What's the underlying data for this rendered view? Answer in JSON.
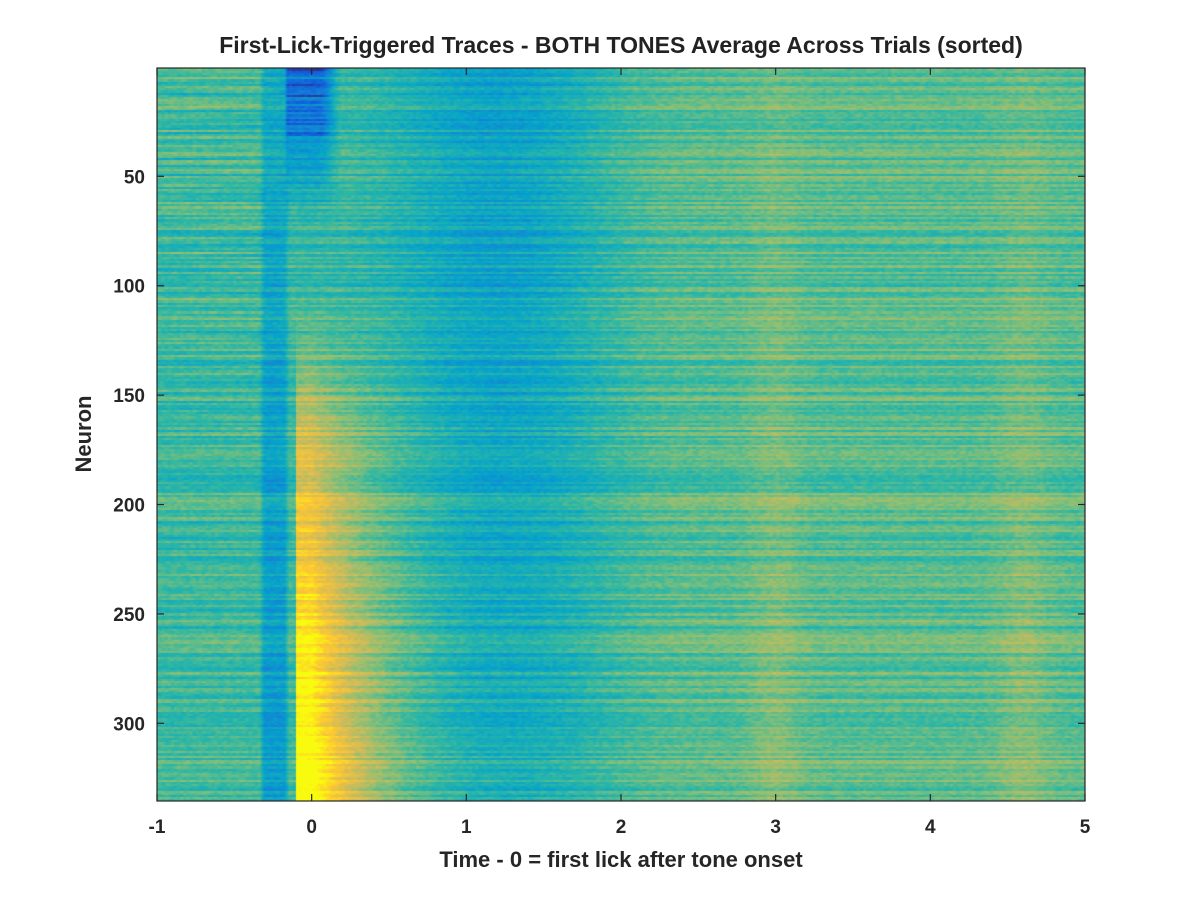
{
  "chart_data": {
    "type": "heatmap",
    "title": "First-Lick-Triggered Traces - BOTH TONES Average Across Trials (sorted)",
    "xlabel": "Time - 0 = first lick after tone onset",
    "ylabel": "Neuron",
    "xlim": [
      -1,
      5
    ],
    "ylim": [
      1,
      335
    ],
    "y_reversed": true,
    "x_ticks": [
      -1,
      0,
      1,
      2,
      3,
      4,
      5
    ],
    "x_tick_labels": [
      "-1",
      "0",
      "1",
      "2",
      "3",
      "4",
      "5"
    ],
    "y_ticks": [
      50,
      100,
      150,
      200,
      250,
      300
    ],
    "y_tick_labels": [
      "50",
      "100",
      "150",
      "200",
      "250",
      "300"
    ],
    "n_neurons": 335,
    "colormap": "parula",
    "colormap_stops": [
      "#352a87",
      "#0f5cdd",
      "#1481d6",
      "#06a4ca",
      "#2eb7a4",
      "#87bf77",
      "#d1bb59",
      "#fec832",
      "#f9fb0e"
    ],
    "structure": {
      "suppression_band_x": [
        -0.3,
        -0.18
      ],
      "early_suppression_neurons": [
        1,
        60
      ],
      "early_suppression_window_x": [
        -0.18,
        0.1
      ],
      "excitation_neurons": [
        180,
        335
      ],
      "excitation_window_x": [
        -0.15,
        0.6
      ],
      "secondary_activation_peaks_x": [
        3.0,
        4.6
      ]
    },
    "grid": false,
    "colorbar": false
  }
}
